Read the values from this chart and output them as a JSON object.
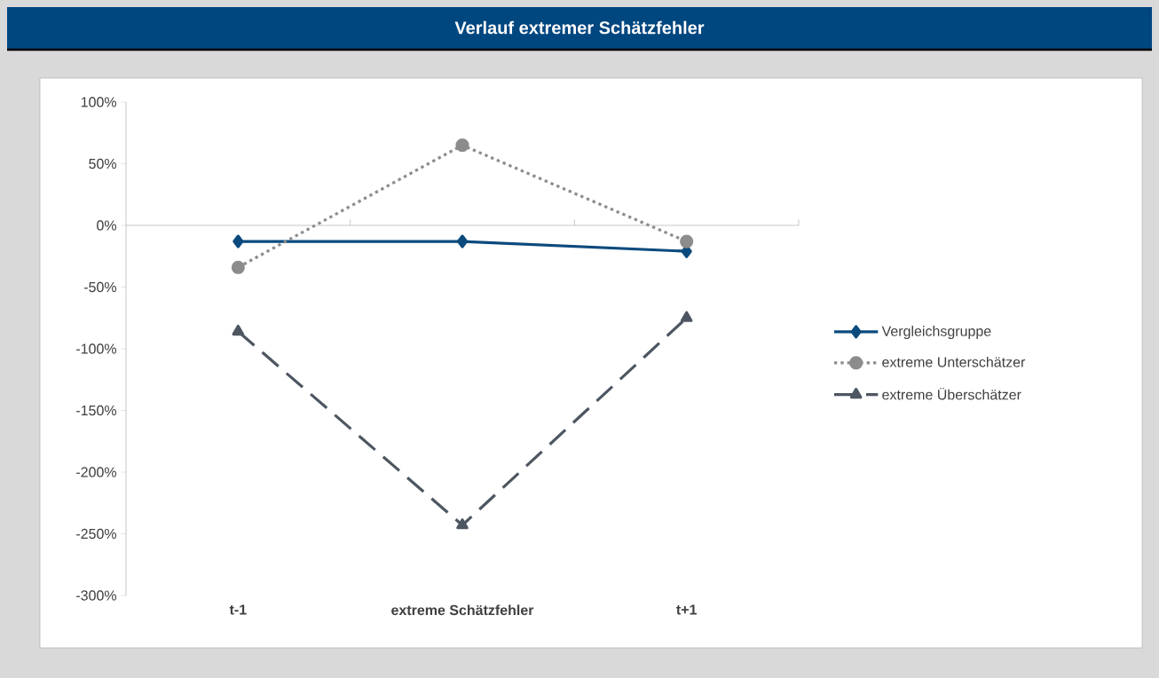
{
  "chart_data": {
    "type": "line",
    "title": "Verlauf extremer Schätzfehler",
    "categories": [
      "t-1",
      "extreme Schätzfehler",
      "t+1"
    ],
    "series": [
      {
        "name": "Vergleichsgruppe",
        "color": "#0b4a7d",
        "values": [
          -13,
          -13,
          -21
        ],
        "marker": "diamond",
        "line_style": "solid"
      },
      {
        "name": "extreme Unterschätzer",
        "color": "#8c8c8c",
        "values": [
          -34,
          65,
          -13
        ],
        "marker": "circle",
        "line_style": "dotted"
      },
      {
        "name": "extreme Überschätzer",
        "color": "#4d5661",
        "values": [
          -86,
          -243,
          -75
        ],
        "marker": "triangle",
        "line_style": "dashed"
      }
    ],
    "ylim": [
      -300,
      100
    ],
    "yticks": [
      {
        "value": -300,
        "label": "-300%"
      },
      {
        "value": -250,
        "label": "-250%"
      },
      {
        "value": -200,
        "label": "-200%"
      },
      {
        "value": -150,
        "label": "-150%"
      },
      {
        "value": -100,
        "label": "-100%"
      },
      {
        "value": -50,
        "label": "-50%"
      },
      {
        "value": 0,
        "label": "0%"
      },
      {
        "value": 50,
        "label": "50%"
      },
      {
        "value": 100,
        "label": "100%"
      }
    ],
    "legend": "right"
  }
}
